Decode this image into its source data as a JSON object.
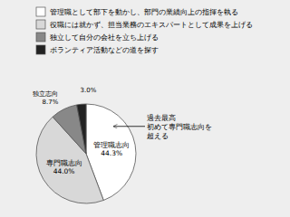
{
  "chart_data": {
    "type": "pie",
    "categories": [
      "管理職として部下を動かし、部門の業績向上の指揮を執る",
      "役職には就かず、担当業務のエキスパートとして成果を上げる",
      "独立して自分の会社を立ち上げる",
      "ボランティア活動などの道を探す"
    ],
    "values": [
      44.3,
      44.0,
      8.7,
      3.0
    ],
    "value_labels": [
      "管理職志向\n44.3%",
      "専門職志向\n44.0%",
      "独立志向\n8.7%",
      "3.0%"
    ],
    "colors": [
      "#ffffff",
      "#d8d8d8",
      "#888888",
      "#222222"
    ],
    "data_labels": true,
    "legend": "top",
    "annotation": "過去最高\n初めて専門職志向を\n超える"
  }
}
